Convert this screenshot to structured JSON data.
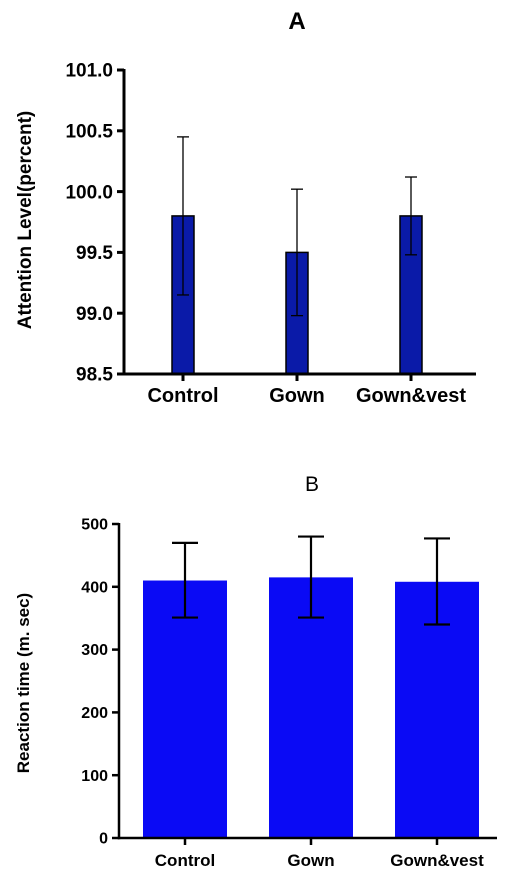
{
  "chart_data": [
    {
      "type": "bar",
      "title": "A",
      "xlabel": "",
      "ylabel": "Attention Level(percent)",
      "categories": [
        "Control",
        "Gown",
        "Gown&vest"
      ],
      "values": [
        99.8,
        99.5,
        99.8
      ],
      "error_upper": [
        100.45,
        100.02,
        100.12
      ],
      "error_lower": [
        99.15,
        98.98,
        99.48
      ],
      "ylim": [
        98.5,
        101.0
      ],
      "yticks": [
        98.5,
        99.0,
        99.5,
        100.0,
        100.5,
        101.0
      ],
      "ytick_labels": [
        "98.5",
        "99.0",
        "99.5",
        "100.0",
        "100.5",
        "101.0"
      ],
      "bar_color": "#0a1aa8",
      "grid": false
    },
    {
      "type": "bar",
      "title": "B",
      "xlabel": "",
      "ylabel": "Reaction time (m. sec)",
      "categories": [
        "Control",
        "Gown",
        "Gown&vest"
      ],
      "values": [
        410,
        415,
        408
      ],
      "error_upper": [
        470,
        480,
        477
      ],
      "error_lower": [
        351,
        351,
        340
      ],
      "ylim": [
        0,
        500
      ],
      "yticks": [
        0,
        100,
        200,
        300,
        400,
        500
      ],
      "ytick_labels": [
        "0",
        "100",
        "200",
        "300",
        "400",
        "500"
      ],
      "bar_color": "#0a0af5",
      "grid": false
    }
  ]
}
